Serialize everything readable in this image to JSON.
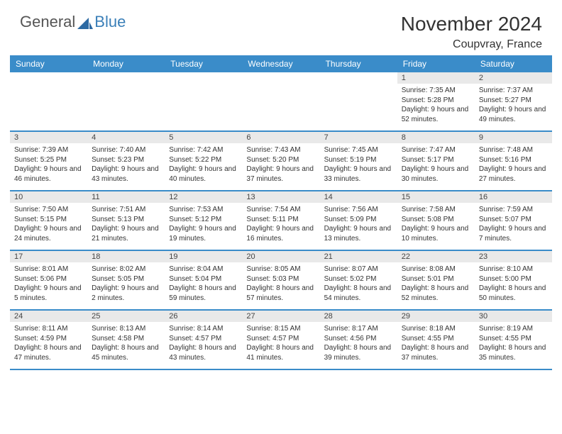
{
  "logo": {
    "text_general": "General",
    "text_blue": "Blue"
  },
  "title": "November 2024",
  "location": "Coupvray, France",
  "day_names": [
    "Sunday",
    "Monday",
    "Tuesday",
    "Wednesday",
    "Thursday",
    "Friday",
    "Saturday"
  ],
  "colors": {
    "header_bg": "#3a8cc9",
    "day_bar_bg": "#e9e9e9",
    "border": "#3a8cc9",
    "text": "#333333",
    "logo_blue": "#3a7fb8"
  },
  "weeks": [
    [
      {
        "n": "",
        "sunrise": "",
        "sunset": "",
        "daylight": ""
      },
      {
        "n": "",
        "sunrise": "",
        "sunset": "",
        "daylight": ""
      },
      {
        "n": "",
        "sunrise": "",
        "sunset": "",
        "daylight": ""
      },
      {
        "n": "",
        "sunrise": "",
        "sunset": "",
        "daylight": ""
      },
      {
        "n": "",
        "sunrise": "",
        "sunset": "",
        "daylight": ""
      },
      {
        "n": "1",
        "sunrise": "Sunrise: 7:35 AM",
        "sunset": "Sunset: 5:28 PM",
        "daylight": "Daylight: 9 hours and 52 minutes."
      },
      {
        "n": "2",
        "sunrise": "Sunrise: 7:37 AM",
        "sunset": "Sunset: 5:27 PM",
        "daylight": "Daylight: 9 hours and 49 minutes."
      }
    ],
    [
      {
        "n": "3",
        "sunrise": "Sunrise: 7:39 AM",
        "sunset": "Sunset: 5:25 PM",
        "daylight": "Daylight: 9 hours and 46 minutes."
      },
      {
        "n": "4",
        "sunrise": "Sunrise: 7:40 AM",
        "sunset": "Sunset: 5:23 PM",
        "daylight": "Daylight: 9 hours and 43 minutes."
      },
      {
        "n": "5",
        "sunrise": "Sunrise: 7:42 AM",
        "sunset": "Sunset: 5:22 PM",
        "daylight": "Daylight: 9 hours and 40 minutes."
      },
      {
        "n": "6",
        "sunrise": "Sunrise: 7:43 AM",
        "sunset": "Sunset: 5:20 PM",
        "daylight": "Daylight: 9 hours and 37 minutes."
      },
      {
        "n": "7",
        "sunrise": "Sunrise: 7:45 AM",
        "sunset": "Sunset: 5:19 PM",
        "daylight": "Daylight: 9 hours and 33 minutes."
      },
      {
        "n": "8",
        "sunrise": "Sunrise: 7:47 AM",
        "sunset": "Sunset: 5:17 PM",
        "daylight": "Daylight: 9 hours and 30 minutes."
      },
      {
        "n": "9",
        "sunrise": "Sunrise: 7:48 AM",
        "sunset": "Sunset: 5:16 PM",
        "daylight": "Daylight: 9 hours and 27 minutes."
      }
    ],
    [
      {
        "n": "10",
        "sunrise": "Sunrise: 7:50 AM",
        "sunset": "Sunset: 5:15 PM",
        "daylight": "Daylight: 9 hours and 24 minutes."
      },
      {
        "n": "11",
        "sunrise": "Sunrise: 7:51 AM",
        "sunset": "Sunset: 5:13 PM",
        "daylight": "Daylight: 9 hours and 21 minutes."
      },
      {
        "n": "12",
        "sunrise": "Sunrise: 7:53 AM",
        "sunset": "Sunset: 5:12 PM",
        "daylight": "Daylight: 9 hours and 19 minutes."
      },
      {
        "n": "13",
        "sunrise": "Sunrise: 7:54 AM",
        "sunset": "Sunset: 5:11 PM",
        "daylight": "Daylight: 9 hours and 16 minutes."
      },
      {
        "n": "14",
        "sunrise": "Sunrise: 7:56 AM",
        "sunset": "Sunset: 5:09 PM",
        "daylight": "Daylight: 9 hours and 13 minutes."
      },
      {
        "n": "15",
        "sunrise": "Sunrise: 7:58 AM",
        "sunset": "Sunset: 5:08 PM",
        "daylight": "Daylight: 9 hours and 10 minutes."
      },
      {
        "n": "16",
        "sunrise": "Sunrise: 7:59 AM",
        "sunset": "Sunset: 5:07 PM",
        "daylight": "Daylight: 9 hours and 7 minutes."
      }
    ],
    [
      {
        "n": "17",
        "sunrise": "Sunrise: 8:01 AM",
        "sunset": "Sunset: 5:06 PM",
        "daylight": "Daylight: 9 hours and 5 minutes."
      },
      {
        "n": "18",
        "sunrise": "Sunrise: 8:02 AM",
        "sunset": "Sunset: 5:05 PM",
        "daylight": "Daylight: 9 hours and 2 minutes."
      },
      {
        "n": "19",
        "sunrise": "Sunrise: 8:04 AM",
        "sunset": "Sunset: 5:04 PM",
        "daylight": "Daylight: 8 hours and 59 minutes."
      },
      {
        "n": "20",
        "sunrise": "Sunrise: 8:05 AM",
        "sunset": "Sunset: 5:03 PM",
        "daylight": "Daylight: 8 hours and 57 minutes."
      },
      {
        "n": "21",
        "sunrise": "Sunrise: 8:07 AM",
        "sunset": "Sunset: 5:02 PM",
        "daylight": "Daylight: 8 hours and 54 minutes."
      },
      {
        "n": "22",
        "sunrise": "Sunrise: 8:08 AM",
        "sunset": "Sunset: 5:01 PM",
        "daylight": "Daylight: 8 hours and 52 minutes."
      },
      {
        "n": "23",
        "sunrise": "Sunrise: 8:10 AM",
        "sunset": "Sunset: 5:00 PM",
        "daylight": "Daylight: 8 hours and 50 minutes."
      }
    ],
    [
      {
        "n": "24",
        "sunrise": "Sunrise: 8:11 AM",
        "sunset": "Sunset: 4:59 PM",
        "daylight": "Daylight: 8 hours and 47 minutes."
      },
      {
        "n": "25",
        "sunrise": "Sunrise: 8:13 AM",
        "sunset": "Sunset: 4:58 PM",
        "daylight": "Daylight: 8 hours and 45 minutes."
      },
      {
        "n": "26",
        "sunrise": "Sunrise: 8:14 AM",
        "sunset": "Sunset: 4:57 PM",
        "daylight": "Daylight: 8 hours and 43 minutes."
      },
      {
        "n": "27",
        "sunrise": "Sunrise: 8:15 AM",
        "sunset": "Sunset: 4:57 PM",
        "daylight": "Daylight: 8 hours and 41 minutes."
      },
      {
        "n": "28",
        "sunrise": "Sunrise: 8:17 AM",
        "sunset": "Sunset: 4:56 PM",
        "daylight": "Daylight: 8 hours and 39 minutes."
      },
      {
        "n": "29",
        "sunrise": "Sunrise: 8:18 AM",
        "sunset": "Sunset: 4:55 PM",
        "daylight": "Daylight: 8 hours and 37 minutes."
      },
      {
        "n": "30",
        "sunrise": "Sunrise: 8:19 AM",
        "sunset": "Sunset: 4:55 PM",
        "daylight": "Daylight: 8 hours and 35 minutes."
      }
    ]
  ]
}
